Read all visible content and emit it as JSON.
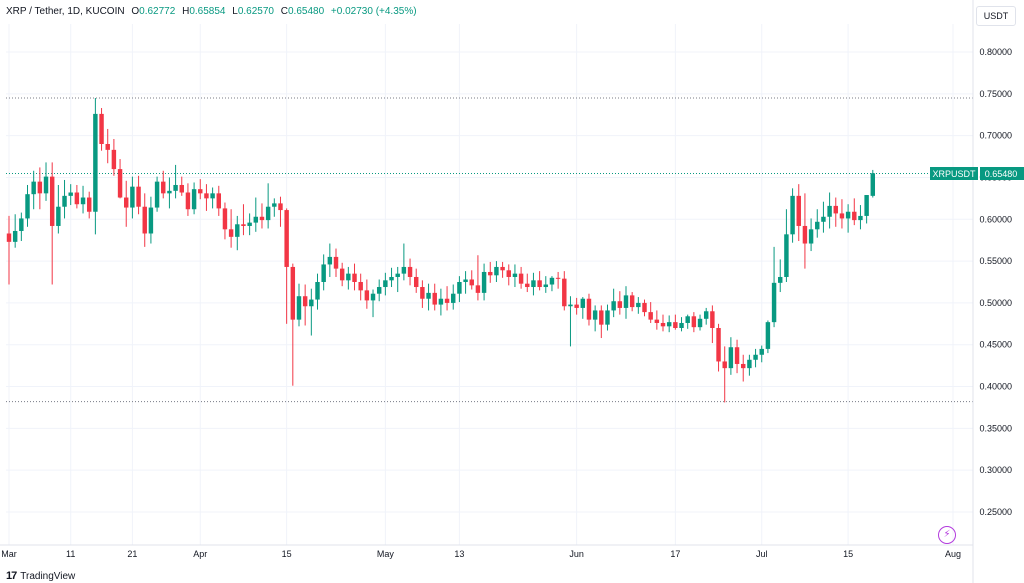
{
  "header": {
    "symbol": "XRP / Tether, 1D, KUCOIN",
    "o_label": "O",
    "o_value": "0.62772",
    "h_label": "H",
    "h_value": "0.65854",
    "l_label": "L",
    "l_value": "0.62570",
    "c_label": "C",
    "c_value": "0.65480",
    "change": "+0.02730 (+4.35%)"
  },
  "currency_button": "USDT",
  "price_tag": {
    "name": "XRPUSDT",
    "value": "0.65480"
  },
  "branding": "TradingView",
  "chart_data": {
    "type": "candlestick",
    "up_color": "#089981",
    "down_color": "#f23645",
    "y_ticks": [
      "0.80000",
      "0.75000",
      "0.70000",
      "0.65000",
      "0.60000",
      "0.55000",
      "0.50000",
      "0.45000",
      "0.40000",
      "0.35000",
      "0.30000",
      "0.25000"
    ],
    "ylim": [
      0.215,
      0.83
    ],
    "x_ticks": [
      {
        "label": "Mar",
        "day": 0
      },
      {
        "label": "11",
        "day": 10
      },
      {
        "label": "21",
        "day": 20
      },
      {
        "label": "Apr",
        "day": 31
      },
      {
        "label": "15",
        "day": 45
      },
      {
        "label": "May",
        "day": 61
      },
      {
        "label": "13",
        "day": 73
      },
      {
        "label": "Jun",
        "day": 92
      },
      {
        "label": "17",
        "day": 108
      },
      {
        "label": "Jul",
        "day": 122
      },
      {
        "label": "15",
        "day": 136
      },
      {
        "label": "Aug",
        "day": 153
      }
    ],
    "days": 153,
    "horizontal_lines": [
      0.745,
      0.6548,
      0.382
    ],
    "candles": [
      [
        0.583,
        0.604,
        0.522,
        0.573
      ],
      [
        0.573,
        0.606,
        0.566,
        0.586
      ],
      [
        0.586,
        0.608,
        0.574,
        0.601
      ],
      [
        0.601,
        0.641,
        0.591,
        0.63
      ],
      [
        0.63,
        0.658,
        0.612,
        0.645
      ],
      [
        0.645,
        0.662,
        0.612,
        0.631
      ],
      [
        0.631,
        0.668,
        0.622,
        0.651
      ],
      [
        0.651,
        0.668,
        0.522,
        0.592
      ],
      [
        0.592,
        0.641,
        0.583,
        0.615
      ],
      [
        0.615,
        0.647,
        0.601,
        0.628
      ],
      [
        0.628,
        0.642,
        0.617,
        0.632
      ],
      [
        0.632,
        0.641,
        0.613,
        0.618
      ],
      [
        0.618,
        0.64,
        0.607,
        0.626
      ],
      [
        0.626,
        0.633,
        0.601,
        0.609
      ],
      [
        0.609,
        0.745,
        0.582,
        0.726
      ],
      [
        0.726,
        0.733,
        0.682,
        0.69
      ],
      [
        0.69,
        0.708,
        0.667,
        0.683
      ],
      [
        0.683,
        0.696,
        0.652,
        0.66
      ],
      [
        0.66,
        0.672,
        0.625,
        0.626
      ],
      [
        0.626,
        0.646,
        0.591,
        0.614
      ],
      [
        0.614,
        0.651,
        0.601,
        0.639
      ],
      [
        0.639,
        0.652,
        0.606,
        0.615
      ],
      [
        0.615,
        0.631,
        0.567,
        0.583
      ],
      [
        0.583,
        0.627,
        0.571,
        0.614
      ],
      [
        0.614,
        0.651,
        0.609,
        0.645
      ],
      [
        0.645,
        0.658,
        0.625,
        0.631
      ],
      [
        0.631,
        0.65,
        0.613,
        0.634
      ],
      [
        0.634,
        0.665,
        0.625,
        0.641
      ],
      [
        0.641,
        0.651,
        0.628,
        0.632
      ],
      [
        0.632,
        0.643,
        0.604,
        0.612
      ],
      [
        0.612,
        0.644,
        0.606,
        0.636
      ],
      [
        0.636,
        0.648,
        0.624,
        0.631
      ],
      [
        0.631,
        0.642,
        0.61,
        0.625
      ],
      [
        0.625,
        0.638,
        0.613,
        0.631
      ],
      [
        0.631,
        0.64,
        0.604,
        0.613
      ],
      [
        0.613,
        0.62,
        0.576,
        0.588
      ],
      [
        0.588,
        0.612,
        0.566,
        0.579
      ],
      [
        0.579,
        0.604,
        0.563,
        0.594
      ],
      [
        0.594,
        0.618,
        0.581,
        0.592
      ],
      [
        0.592,
        0.607,
        0.581,
        0.596
      ],
      [
        0.596,
        0.626,
        0.585,
        0.603
      ],
      [
        0.603,
        0.619,
        0.589,
        0.599
      ],
      [
        0.599,
        0.643,
        0.589,
        0.615
      ],
      [
        0.615,
        0.625,
        0.603,
        0.619
      ],
      [
        0.619,
        0.627,
        0.591,
        0.611
      ],
      [
        0.611,
        0.613,
        0.475,
        0.543
      ],
      [
        0.543,
        0.547,
        0.401,
        0.48
      ],
      [
        0.48,
        0.523,
        0.472,
        0.508
      ],
      [
        0.508,
        0.522,
        0.473,
        0.496
      ],
      [
        0.496,
        0.517,
        0.461,
        0.504
      ],
      [
        0.504,
        0.535,
        0.492,
        0.525
      ],
      [
        0.525,
        0.558,
        0.515,
        0.546
      ],
      [
        0.546,
        0.571,
        0.531,
        0.555
      ],
      [
        0.555,
        0.565,
        0.531,
        0.541
      ],
      [
        0.541,
        0.548,
        0.52,
        0.527
      ],
      [
        0.527,
        0.543,
        0.516,
        0.535
      ],
      [
        0.535,
        0.547,
        0.515,
        0.525
      ],
      [
        0.525,
        0.535,
        0.503,
        0.515
      ],
      [
        0.515,
        0.528,
        0.493,
        0.503
      ],
      [
        0.503,
        0.516,
        0.483,
        0.511
      ],
      [
        0.511,
        0.528,
        0.502,
        0.519
      ],
      [
        0.519,
        0.536,
        0.509,
        0.527
      ],
      [
        0.527,
        0.542,
        0.519,
        0.531
      ],
      [
        0.531,
        0.543,
        0.513,
        0.535
      ],
      [
        0.535,
        0.571,
        0.527,
        0.543
      ],
      [
        0.543,
        0.553,
        0.521,
        0.531
      ],
      [
        0.531,
        0.541,
        0.512,
        0.519
      ],
      [
        0.519,
        0.527,
        0.494,
        0.505
      ],
      [
        0.505,
        0.523,
        0.491,
        0.512
      ],
      [
        0.512,
        0.523,
        0.491,
        0.498
      ],
      [
        0.498,
        0.517,
        0.485,
        0.505
      ],
      [
        0.505,
        0.52,
        0.491,
        0.5
      ],
      [
        0.5,
        0.522,
        0.492,
        0.511
      ],
      [
        0.511,
        0.532,
        0.501,
        0.525
      ],
      [
        0.525,
        0.538,
        0.511,
        0.528
      ],
      [
        0.528,
        0.539,
        0.516,
        0.521
      ],
      [
        0.521,
        0.557,
        0.503,
        0.512
      ],
      [
        0.512,
        0.547,
        0.503,
        0.537
      ],
      [
        0.537,
        0.549,
        0.524,
        0.533
      ],
      [
        0.533,
        0.55,
        0.525,
        0.543
      ],
      [
        0.543,
        0.549,
        0.53,
        0.539
      ],
      [
        0.539,
        0.546,
        0.521,
        0.531
      ],
      [
        0.531,
        0.546,
        0.519,
        0.535
      ],
      [
        0.535,
        0.543,
        0.517,
        0.523
      ],
      [
        0.523,
        0.535,
        0.513,
        0.519
      ],
      [
        0.519,
        0.536,
        0.509,
        0.527
      ],
      [
        0.527,
        0.538,
        0.515,
        0.519
      ],
      [
        0.519,
        0.532,
        0.512,
        0.522
      ],
      [
        0.522,
        0.532,
        0.514,
        0.53
      ],
      [
        0.53,
        0.537,
        0.517,
        0.529
      ],
      [
        0.529,
        0.538,
        0.491,
        0.496
      ],
      [
        0.496,
        0.508,
        0.448,
        0.498
      ],
      [
        0.498,
        0.506,
        0.486,
        0.494
      ],
      [
        0.494,
        0.507,
        0.481,
        0.505
      ],
      [
        0.505,
        0.511,
        0.473,
        0.48
      ],
      [
        0.48,
        0.497,
        0.466,
        0.491
      ],
      [
        0.491,
        0.497,
        0.458,
        0.474
      ],
      [
        0.474,
        0.498,
        0.467,
        0.491
      ],
      [
        0.491,
        0.517,
        0.483,
        0.502
      ],
      [
        0.502,
        0.514,
        0.486,
        0.494
      ],
      [
        0.494,
        0.52,
        0.481,
        0.509
      ],
      [
        0.509,
        0.513,
        0.49,
        0.495
      ],
      [
        0.495,
        0.507,
        0.487,
        0.5
      ],
      [
        0.5,
        0.504,
        0.484,
        0.489
      ],
      [
        0.489,
        0.501,
        0.476,
        0.48
      ],
      [
        0.48,
        0.491,
        0.468,
        0.476
      ],
      [
        0.476,
        0.486,
        0.466,
        0.472
      ],
      [
        0.472,
        0.485,
        0.465,
        0.477
      ],
      [
        0.477,
        0.486,
        0.468,
        0.47
      ],
      [
        0.47,
        0.483,
        0.466,
        0.476
      ],
      [
        0.476,
        0.486,
        0.469,
        0.484
      ],
      [
        0.484,
        0.489,
        0.465,
        0.471
      ],
      [
        0.471,
        0.486,
        0.467,
        0.481
      ],
      [
        0.481,
        0.494,
        0.474,
        0.49
      ],
      [
        0.49,
        0.497,
        0.452,
        0.47
      ],
      [
        0.47,
        0.475,
        0.418,
        0.43
      ],
      [
        0.43,
        0.448,
        0.381,
        0.422
      ],
      [
        0.422,
        0.459,
        0.414,
        0.447
      ],
      [
        0.447,
        0.456,
        0.416,
        0.427
      ],
      [
        0.427,
        0.438,
        0.406,
        0.422
      ],
      [
        0.422,
        0.438,
        0.413,
        0.432
      ],
      [
        0.432,
        0.445,
        0.423,
        0.438
      ],
      [
        0.438,
        0.449,
        0.429,
        0.445
      ],
      [
        0.445,
        0.479,
        0.44,
        0.477
      ],
      [
        0.477,
        0.567,
        0.471,
        0.524
      ],
      [
        0.524,
        0.552,
        0.513,
        0.531
      ],
      [
        0.531,
        0.612,
        0.525,
        0.582
      ],
      [
        0.582,
        0.637,
        0.572,
        0.628
      ],
      [
        0.628,
        0.642,
        0.574,
        0.592
      ],
      [
        0.592,
        0.631,
        0.541,
        0.571
      ],
      [
        0.571,
        0.601,
        0.562,
        0.588
      ],
      [
        0.588,
        0.612,
        0.578,
        0.597
      ],
      [
        0.597,
        0.621,
        0.584,
        0.603
      ],
      [
        0.603,
        0.632,
        0.589,
        0.616
      ],
      [
        0.616,
        0.626,
        0.591,
        0.607
      ],
      [
        0.607,
        0.624,
        0.589,
        0.601
      ],
      [
        0.601,
        0.618,
        0.584,
        0.609
      ],
      [
        0.609,
        0.625,
        0.593,
        0.599
      ],
      [
        0.599,
        0.617,
        0.588,
        0.604
      ],
      [
        0.604,
        0.625,
        0.595,
        0.629
      ],
      [
        0.628,
        0.659,
        0.626,
        0.655
      ]
    ]
  }
}
